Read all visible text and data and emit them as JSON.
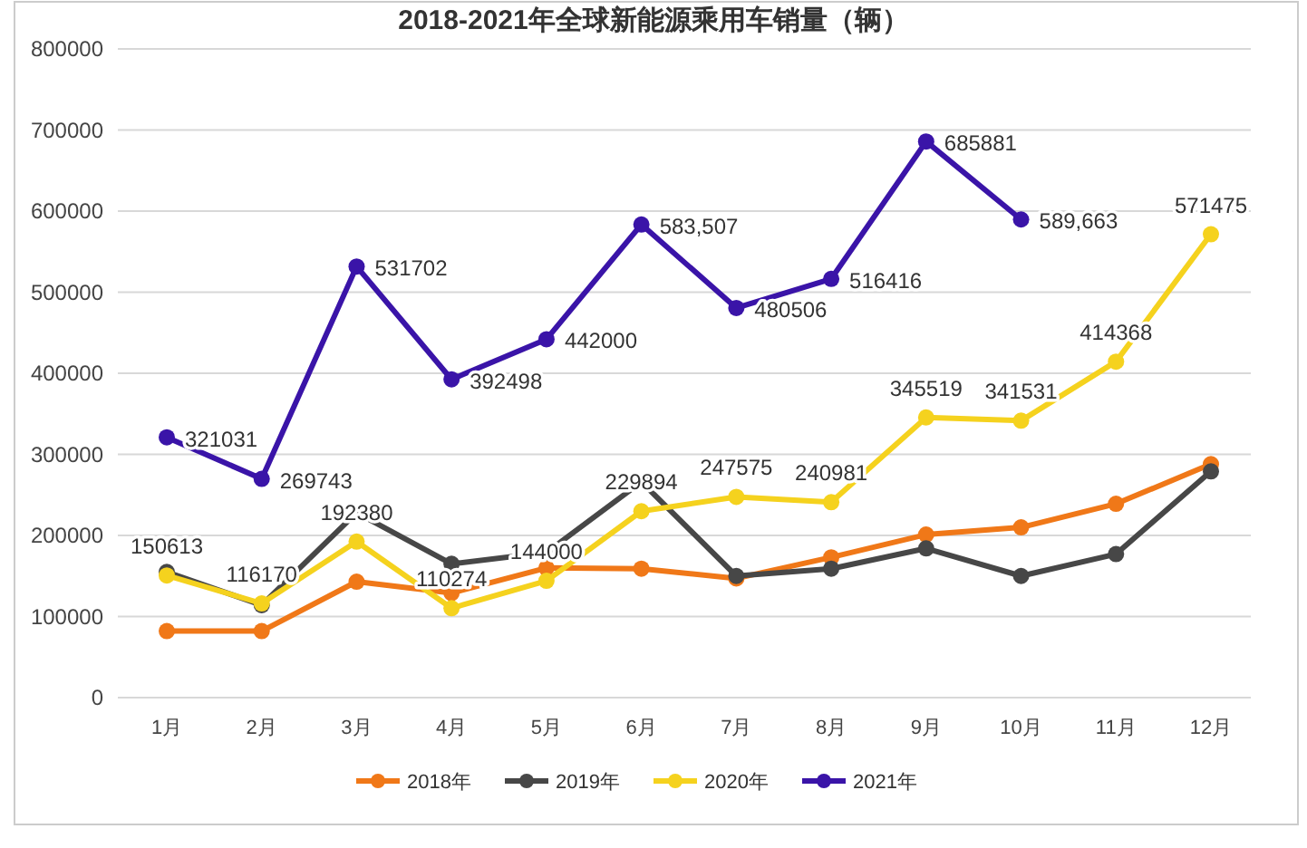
{
  "chart_data": {
    "type": "line",
    "title": "2018-2021年全球新能源乘用车销量（辆）",
    "categories": [
      "1月",
      "2月",
      "3月",
      "4月",
      "5月",
      "6月",
      "7月",
      "8月",
      "9月",
      "10月",
      "11月",
      "12月"
    ],
    "series": [
      {
        "name": "2018年",
        "color": "#f07818",
        "values": [
          82000,
          82000,
          143000,
          129000,
          160000,
          159000,
          147000,
          173000,
          201000,
          210000,
          239000,
          288000
        ]
      },
      {
        "name": "2019年",
        "color": "#474747",
        "values": [
          155000,
          114000,
          228000,
          165000,
          179000,
          266000,
          150000,
          159000,
          184000,
          150000,
          177000,
          279000
        ]
      },
      {
        "name": "2020年",
        "color": "#f5d21e",
        "values": [
          150613,
          116170,
          192380,
          110274,
          144000,
          229894,
          247575,
          240981,
          345519,
          341531,
          414368,
          571475
        ],
        "value_labels": [
          "150613",
          "116170",
          "192380",
          "110274",
          "144000",
          "229894",
          "247575",
          "240981",
          "345519",
          "341531",
          "414368",
          "571475"
        ]
      },
      {
        "name": "2021年",
        "color": "#3a14a8",
        "values": [
          321031,
          269743,
          531702,
          392498,
          442000,
          583507,
          480506,
          516416,
          685881,
          589663,
          null,
          null
        ],
        "value_labels": [
          "321031",
          "269743",
          "531702",
          "392498",
          "442000",
          "583,507",
          "480506",
          "516416",
          "685881",
          "589,663",
          null,
          null
        ]
      }
    ],
    "ylim": [
      0,
      800000
    ],
    "yticks": [
      0,
      100000,
      200000,
      300000,
      400000,
      500000,
      600000,
      700000,
      800000
    ],
    "grid": "y",
    "legend": "bottom",
    "marker": "circle",
    "line_style": "solid"
  }
}
